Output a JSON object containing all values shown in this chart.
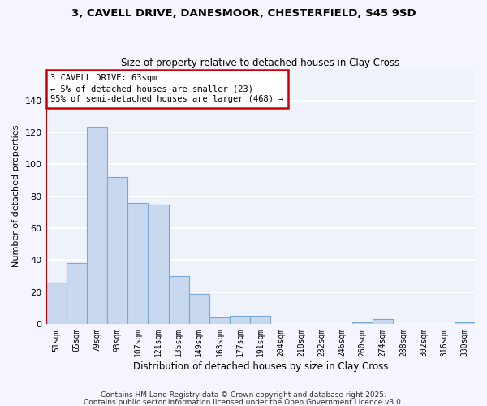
{
  "title1": "3, CAVELL DRIVE, DANESMOOR, CHESTERFIELD, S45 9SD",
  "title2": "Size of property relative to detached houses in Clay Cross",
  "xlabel": "Distribution of detached houses by size in Clay Cross",
  "ylabel": "Number of detached properties",
  "categories": [
    "51sqm",
    "65sqm",
    "79sqm",
    "93sqm",
    "107sqm",
    "121sqm",
    "135sqm",
    "149sqm",
    "163sqm",
    "177sqm",
    "191sqm",
    "204sqm",
    "218sqm",
    "232sqm",
    "246sqm",
    "260sqm",
    "274sqm",
    "288sqm",
    "302sqm",
    "316sqm",
    "330sqm"
  ],
  "values": [
    26,
    38,
    123,
    92,
    76,
    75,
    30,
    19,
    4,
    5,
    5,
    0,
    0,
    0,
    0,
    1,
    3,
    0,
    0,
    0,
    1
  ],
  "bar_color": "#c8d8ef",
  "bar_edge_color": "#7aa8d4",
  "background_color": "#eef2fb",
  "grid_color": "#ffffff",
  "annotation_text_line1": "3 CAVELL DRIVE: 63sqm",
  "annotation_text_line2": "← 5% of detached houses are smaller (23)",
  "annotation_text_line3": "95% of semi-detached houses are larger (468) →",
  "red_color": "#cc0000",
  "ylim": [
    0,
    160
  ],
  "yticks": [
    0,
    20,
    40,
    60,
    80,
    100,
    120,
    140
  ],
  "footnote1": "Contains HM Land Registry data © Crown copyright and database right 2025.",
  "footnote2": "Contains public sector information licensed under the Open Government Licence v3.0."
}
